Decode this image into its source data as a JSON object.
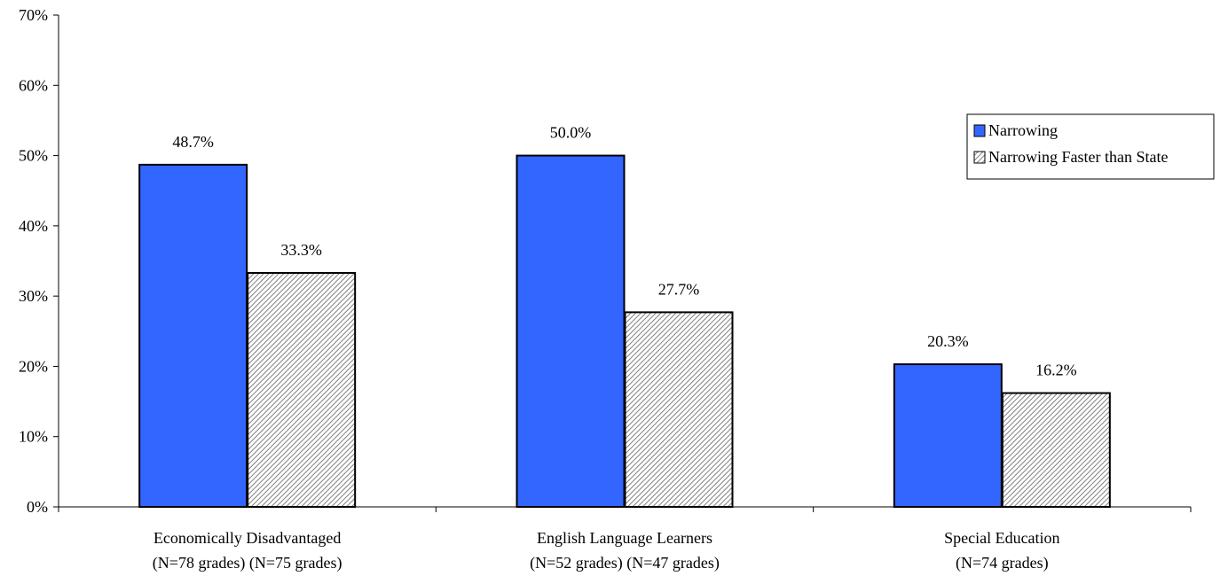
{
  "chart_data": {
    "type": "bar",
    "categories": [
      {
        "line1": "Economically Disadvantaged",
        "line2": "(N=78 grades) (N=75 grades)"
      },
      {
        "line1": "English Language Learners",
        "line2": "(N=52 grades) (N=47 grades)"
      },
      {
        "line1": "Special Education",
        "line2": "(N=74 grades)"
      }
    ],
    "series": [
      {
        "name": "Narrowing",
        "values": [
          48.7,
          50.0,
          20.3
        ],
        "labels": [
          "48.7%",
          "50.0%",
          "20.3%"
        ],
        "color": "#3366ff",
        "pattern": "solid"
      },
      {
        "name": "Narrowing Faster than State",
        "values": [
          33.3,
          27.7,
          16.2
        ],
        "labels": [
          "33.3%",
          "27.7%",
          "16.2%"
        ],
        "color": "#c0c0c0",
        "pattern": "hatch"
      }
    ],
    "ylim": [
      0,
      70
    ],
    "yticks": [
      0,
      10,
      20,
      30,
      40,
      50,
      60,
      70
    ],
    "ytick_labels": [
      "0%",
      "10%",
      "20%",
      "30%",
      "40%",
      "50%",
      "60%",
      "70%"
    ],
    "grid": false,
    "legend_position": "top-right"
  }
}
